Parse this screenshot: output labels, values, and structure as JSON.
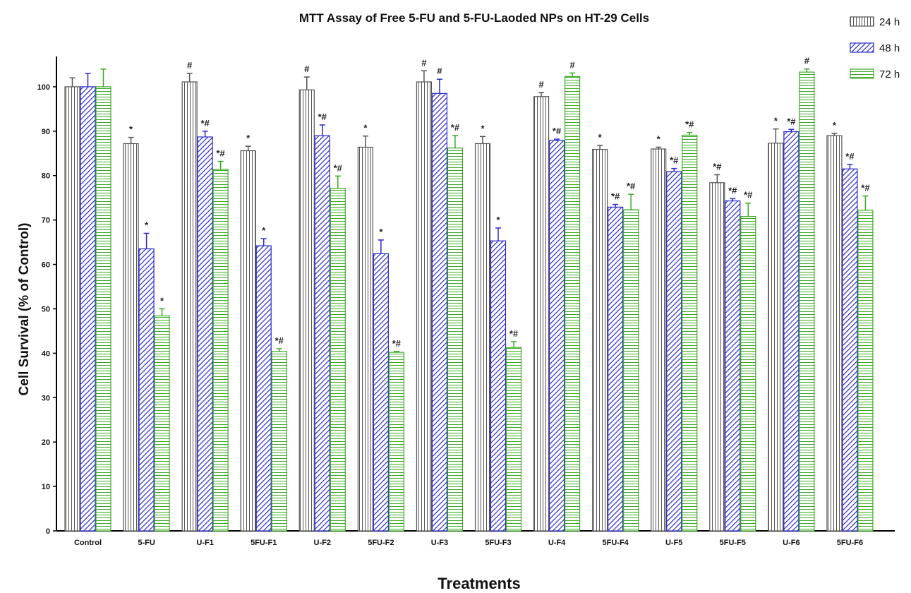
{
  "chart_data": {
    "type": "bar",
    "title": "MTT Assay of Free 5-FU and 5-FU-Laoded NPs on HT-29 Cells",
    "xlabel": "Treatments",
    "ylabel": "Cell Survival (% of Control)",
    "ylim": [
      0,
      110
    ],
    "yticks": [
      0,
      10,
      20,
      30,
      40,
      50,
      60,
      70,
      80,
      90,
      100
    ],
    "grid": false,
    "legend_position": "top-right",
    "categories": [
      "Control",
      "5-FU",
      "U-F1",
      "5FU-F1",
      "U-F2",
      "5FU-F2",
      "U-F3",
      "5FU-F3",
      "U-F4",
      "5FU-F4",
      "U-F5",
      "5FU-F5",
      "U-F6",
      "5FU-F6"
    ],
    "series": [
      {
        "name": "24 h",
        "color": "#555555",
        "pattern": "vertical-lines",
        "values": [
          100,
          87.2,
          101.1,
          85.6,
          99.3,
          86.4,
          101.1,
          87.2,
          97.8,
          85.9,
          86.0,
          78.4,
          87.3,
          89.0
        ],
        "errors": [
          2.0,
          1.4,
          1.9,
          1.0,
          2.9,
          2.5,
          2.5,
          1.6,
          0.9,
          0.9,
          0.4,
          1.8,
          3.2,
          0.5
        ],
        "annotations": [
          "",
          "*",
          "#",
          "*",
          "#",
          "*",
          "#",
          "*",
          "#",
          "*",
          "*",
          "*#",
          "*",
          "*"
        ]
      },
      {
        "name": "48 h",
        "color": "#2a2acc",
        "pattern": "diagonal-lines",
        "values": [
          100,
          63.5,
          88.7,
          64.2,
          89.0,
          62.4,
          98.5,
          65.3,
          87.9,
          72.9,
          80.9,
          74.3,
          89.9,
          81.5
        ],
        "errors": [
          3.0,
          3.5,
          1.3,
          1.6,
          2.4,
          3.1,
          3.2,
          2.9,
          0.3,
          0.6,
          0.7,
          0.5,
          0.5,
          1.0
        ],
        "annotations": [
          "",
          "*",
          "*#",
          "*",
          "*#",
          "*",
          "#",
          "*",
          "*#",
          "*#",
          "*#",
          "*#",
          "*#",
          "*#"
        ]
      },
      {
        "name": "72 h",
        "color": "#3aaa22",
        "pattern": "horizontal-lines",
        "values": [
          100,
          48.4,
          81.4,
          40.4,
          77.1,
          40.2,
          86.2,
          41.3,
          102.3,
          72.3,
          89.1,
          70.8,
          103.3,
          72.2
        ],
        "errors": [
          4.0,
          1.6,
          1.8,
          0.6,
          2.8,
          0.2,
          2.8,
          1.3,
          0.8,
          3.5,
          0.6,
          3.0,
          0.7,
          3.2
        ],
        "annotations": [
          "",
          "*",
          "*#",
          "*#",
          "*#",
          "*#",
          "*#",
          "*#",
          "#",
          "*#",
          "*#",
          "*#",
          "#",
          "*#"
        ]
      }
    ]
  }
}
